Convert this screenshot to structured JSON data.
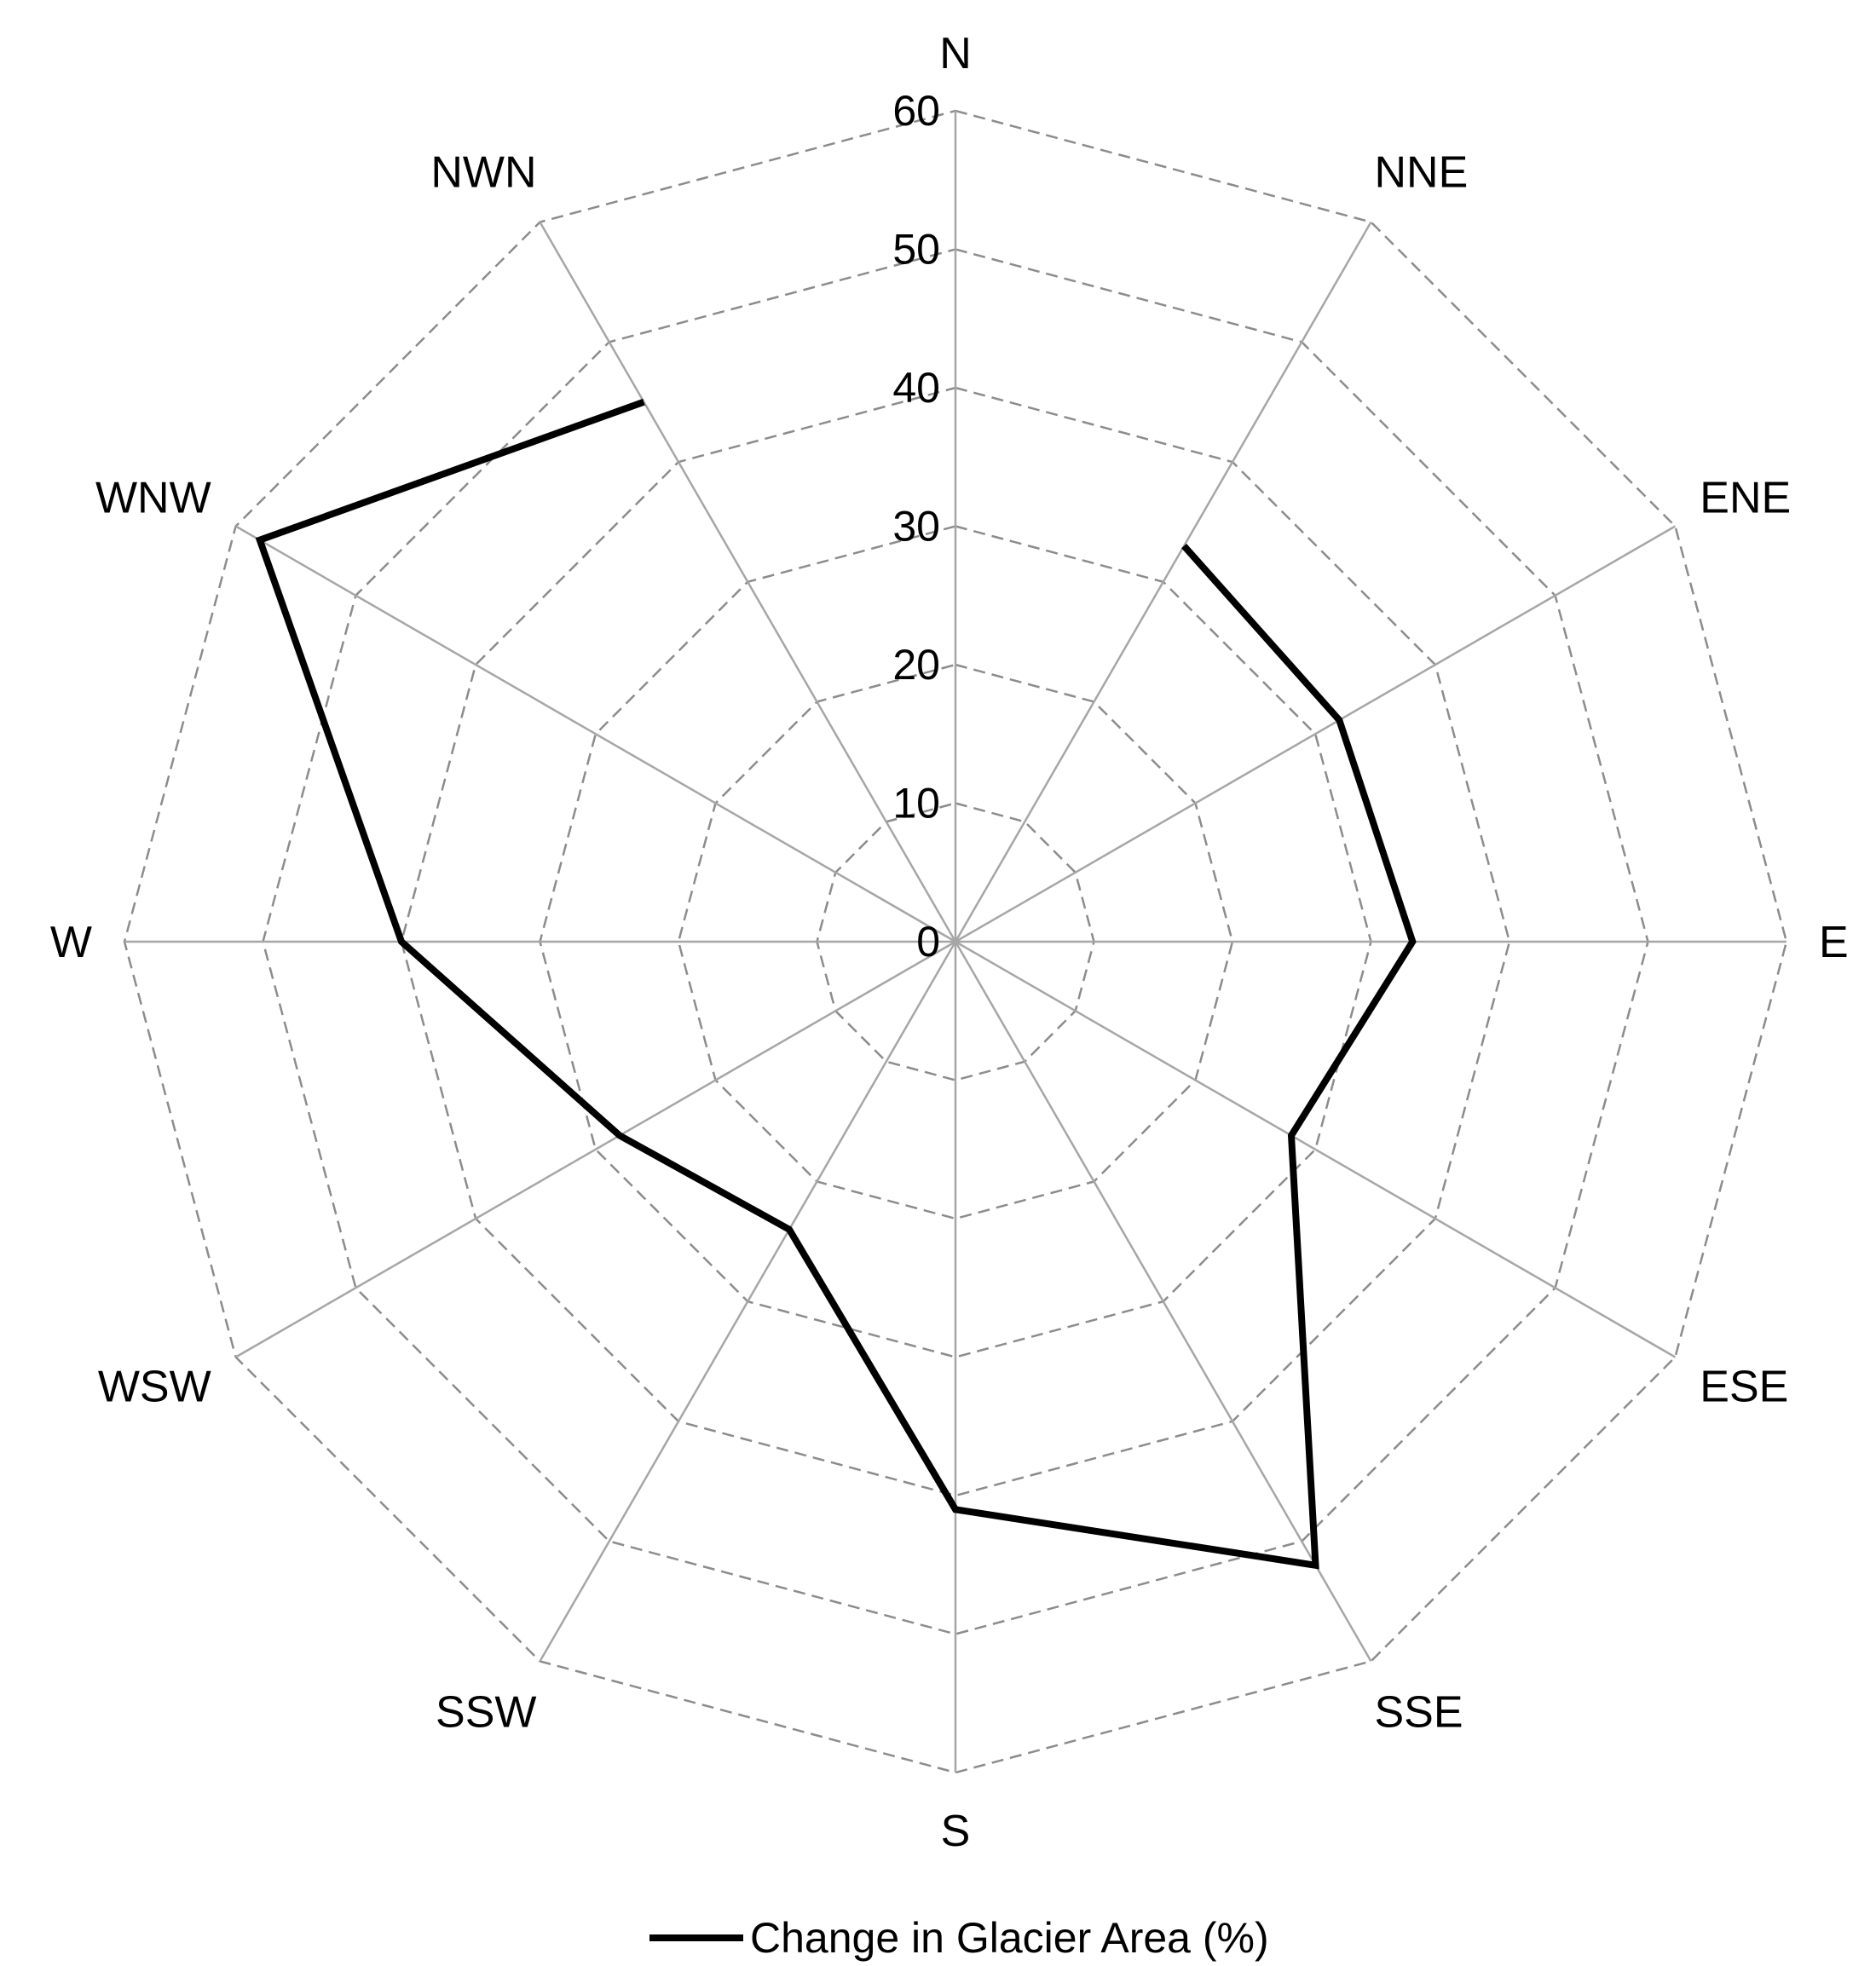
{
  "chart_data": {
    "type": "radar",
    "categories": [
      "N",
      "NNE",
      "ENE",
      "E",
      "ESE",
      "SSE",
      "S",
      "SSW",
      "WSW",
      "W",
      "WNW",
      "NWN"
    ],
    "series": [
      {
        "name": "Change in Glacier Area (%)",
        "values": [
          null,
          33,
          32,
          33,
          28,
          52,
          41,
          24,
          28,
          40,
          58,
          45
        ],
        "color": "#000000"
      }
    ],
    "rlim": [
      0,
      60
    ],
    "rticks": [
      "0",
      "10",
      "20",
      "30",
      "40",
      "50",
      "60"
    ],
    "grid": true,
    "legend": "bottom-center"
  }
}
